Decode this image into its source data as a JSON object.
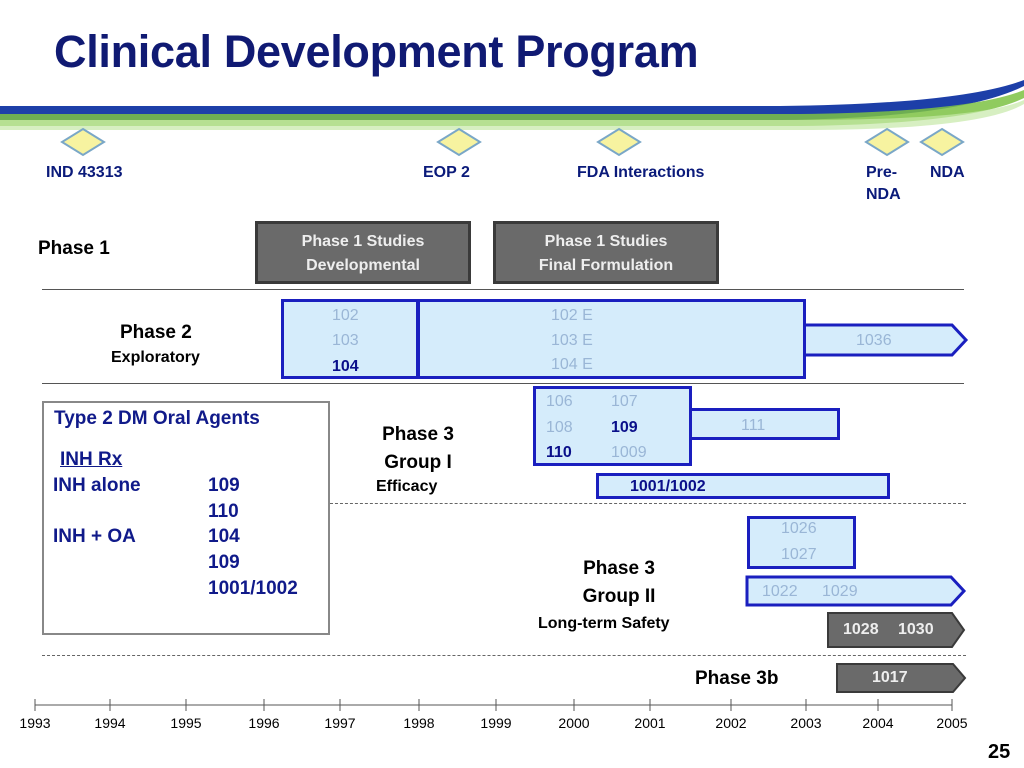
{
  "title": "Clinical Development Program",
  "page_number": "25",
  "milestones": {
    "ind": "IND 43313",
    "eop2": "EOP 2",
    "fda": "FDA Interactions",
    "prenda_1": "Pre-",
    "prenda_2": "NDA",
    "nda": "NDA"
  },
  "phase1": {
    "label": "Phase 1",
    "box1_line1": "Phase 1 Studies",
    "box1_line2": "Developmental",
    "box2_line1": "Phase 1 Studies",
    "box2_line2": "Final Formulation"
  },
  "phase2": {
    "label": "Phase 2",
    "sub": "Exploratory",
    "s102": "102",
    "s103": "103",
    "s104": "104",
    "s102e": "102 E",
    "s103e": "103 E",
    "s104e": "104 E",
    "s1036": "1036"
  },
  "phase3g1": {
    "label1": "Phase 3",
    "label2": "Group I",
    "sub": "Efficacy",
    "s106": "106",
    "s107": "107",
    "s108": "108",
    "s109": "109",
    "s110": "110",
    "s1009": "1009",
    "s111": "111",
    "s1001": "1001/1002"
  },
  "phase3g2": {
    "label1": "Phase 3",
    "label2": "Group II",
    "sub": "Long-term Safety",
    "s1026": "1026",
    "s1027": "1027",
    "s1022": "1022",
    "s1029": "1029",
    "s1028": "1028",
    "s1030": "1030"
  },
  "phase3b": {
    "label": "Phase 3b",
    "s1017": "1017"
  },
  "legend": {
    "title": "Type 2 DM Oral Agents",
    "inh_rx": "INH Rx",
    "row1_label": "INH alone",
    "row1_v1": "109",
    "row1_v2": "110",
    "row2_label": "INH + OA",
    "row2_v1": "104",
    "row2_v2": "109",
    "row2_v3": "1001/1002"
  },
  "years": [
    "1993",
    "1994",
    "1995",
    "1996",
    "1997",
    "1998",
    "1999",
    "2000",
    "2001",
    "2002",
    "2003",
    "2004",
    "2005"
  ],
  "colors": {
    "title": "#101a73",
    "study_box_fill": "#d5ecfb",
    "study_box_border": "#1a1fbf",
    "gray_box": "#6a6a6a",
    "swoosh_blue": "#1d3fa8",
    "swoosh_green": "#7cc243"
  }
}
